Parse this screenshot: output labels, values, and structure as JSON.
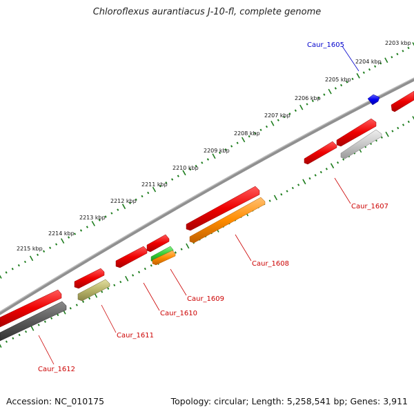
{
  "title": "Chloroflexus aurantiacus J-10-fl, complete genome",
  "accession_text": "Accession: NC_010175",
  "summary_text": "Topology: circular; Length: 5,258,541 bp; Genes: 3,911",
  "colors": {
    "backbone": "#808080",
    "tick": "#1e7d1e",
    "label_red": "#cc0000",
    "label_blue": "#0000cc",
    "red": "#ee0000",
    "orange": "#ff8c00",
    "green": "#33cc33",
    "olive": "#b8b46a",
    "gray": "#c8c8c8",
    "darkgray": "#5a5a5a",
    "blue": "#0000ee"
  },
  "kbp_labels": [
    "2203 kbp",
    "2204 kbp",
    "2205 kbp",
    "2206 kbp",
    "2207 kbp",
    "2208 kbp",
    "2209 kbp",
    "2210 kbp",
    "2211 kbp",
    "2212 kbp",
    "2213 kbp",
    "2214 kbp",
    "2215 kbp"
  ],
  "genes": [
    {
      "label": "Caur_1605",
      "strand": "forward",
      "color": "blue",
      "start_kbp": 2205.1,
      "end_kbp": 2205.3
    },
    {
      "label": "Caur_1606",
      "strand": "forward",
      "color": "red",
      "start_kbp": 2203.0,
      "end_kbp": 2203.8
    },
    {
      "label": "",
      "strand": "reverse",
      "color": "red",
      "start_kbp": 2204.8,
      "end_kbp": 2206.1
    },
    {
      "label": "Caur_1607",
      "strand": "reverse",
      "color": "red",
      "start_kbp": 2206.2,
      "end_kbp": 2207.3
    },
    {
      "label": "",
      "strand": "reverse",
      "color": "gray",
      "start_kbp": 2204.9,
      "end_kbp": 2206.3
    },
    {
      "label": "Caur_1608",
      "strand": "reverse",
      "color": "red",
      "start_kbp": 2208.7,
      "end_kbp": 2211.3
    },
    {
      "label": "",
      "strand": "reverse",
      "color": "orange",
      "start_kbp": 2208.4,
      "end_kbp": 2211.2
    },
    {
      "label": "Caur_1609",
      "strand": "reverse",
      "color": "red",
      "start_kbp": 2211.6,
      "end_kbp": 2212.4
    },
    {
      "label": "",
      "strand": "reverse",
      "color": "green",
      "start_kbp": 2211.6,
      "end_kbp": 2212.4
    },
    {
      "label": "",
      "strand": "reverse",
      "color": "orange",
      "start_kbp": 2211.6,
      "end_kbp": 2212.4
    },
    {
      "label": "Caur_1610",
      "strand": "reverse",
      "color": "red",
      "start_kbp": 2212.7,
      "end_kbp": 2213.8
    },
    {
      "label": "Caur_1611",
      "strand": "reverse",
      "color": "red",
      "start_kbp": 2214.3,
      "end_kbp": 2215.3
    },
    {
      "label": "",
      "strand": "reverse",
      "color": "olive",
      "start_kbp": 2214.1,
      "end_kbp": 2215.3
    },
    {
      "label": "Caur_1612",
      "strand": "reverse",
      "color": "red",
      "start_kbp": 2215.8,
      "end_kbp": 2218.0
    },
    {
      "label": "",
      "strand": "reverse",
      "color": "darkgray",
      "start_kbp": 2215.8,
      "end_kbp": 2218.0
    }
  ],
  "scroll_label": ""
}
